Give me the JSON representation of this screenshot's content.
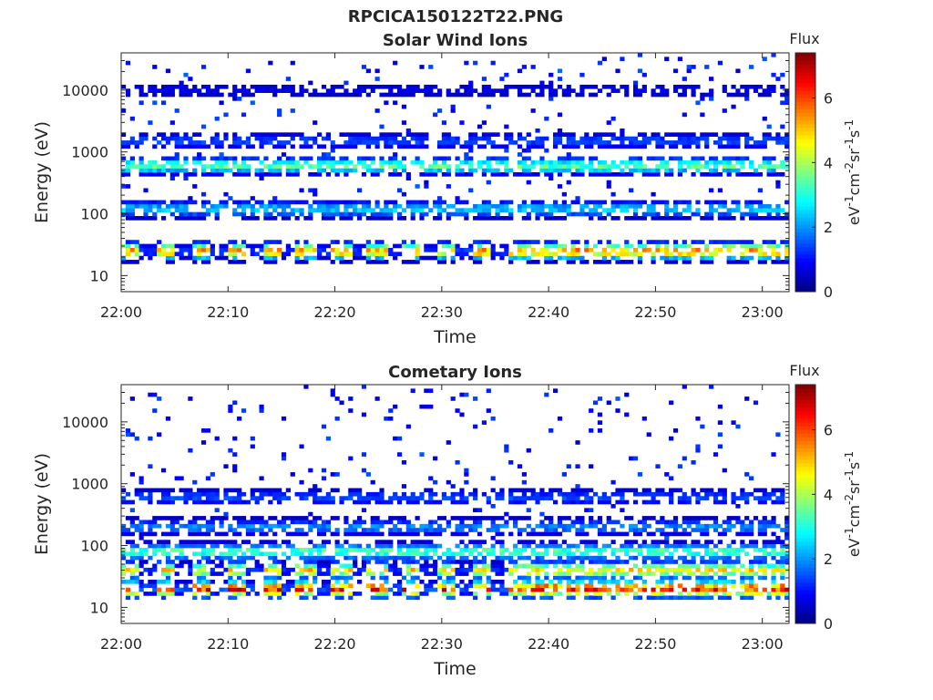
{
  "figure_title": "RPCICA150122T22.PNG",
  "chart_data": [
    {
      "type": "heatmap",
      "title": "Solar Wind Ions",
      "xlabel": "Time",
      "ylabel": "Energy (eV)",
      "x_ticks": [
        "22:00",
        "22:10",
        "22:20",
        "22:30",
        "22:40",
        "22:50",
        "23:00"
      ],
      "y_scale": "log",
      "y_ticks": [
        "10",
        "100",
        "1000",
        "10000"
      ],
      "ylim": [
        5.5,
        40000
      ],
      "x_range_minutes": [
        0,
        62.5
      ],
      "colorbar": {
        "title": "Flux",
        "unit_label": "eV-1cm-2sr-1s-1",
        "ticks": [
          "0",
          "2",
          "4",
          "6"
        ],
        "range": [
          0,
          7.4
        ],
        "colormap": "jet"
      },
      "energy_bands": [
        {
          "energy_eV": 25,
          "flux": 5.5,
          "note": "strongest solar wind band, pulsed"
        },
        {
          "energy_eV": 120,
          "flux": 2.5
        },
        {
          "energy_eV": 600,
          "flux": 3.5
        },
        {
          "energy_eV": 1500,
          "flux": 1.5
        },
        {
          "energy_eV": 10000,
          "flux": 0.8
        }
      ]
    },
    {
      "type": "heatmap",
      "title": "Cometary Ions",
      "xlabel": "Time",
      "ylabel": "Energy (eV)",
      "x_ticks": [
        "22:00",
        "22:10",
        "22:20",
        "22:30",
        "22:40",
        "22:50",
        "23:00"
      ],
      "y_scale": "log",
      "y_ticks": [
        "10",
        "100",
        "1000",
        "10000"
      ],
      "ylim": [
        5.5,
        40000
      ],
      "x_range_minutes": [
        0,
        62.5
      ],
      "colorbar": {
        "title": "Flux",
        "unit_label": "eV-1cm-2sr-1s-1",
        "ticks": [
          "0",
          "2",
          "4",
          "6"
        ],
        "range": [
          0,
          7.4
        ],
        "colormap": "jet"
      },
      "energy_bands": [
        {
          "energy_eV": 20,
          "flux": 6.5,
          "note": "strongest cometary band, pulsed"
        },
        {
          "energy_eV": 40,
          "flux": 5.0
        },
        {
          "energy_eV": 80,
          "flux": 3.5
        },
        {
          "energy_eV": 200,
          "flux": 2.0
        },
        {
          "energy_eV": 600,
          "flux": 1.5
        }
      ]
    }
  ]
}
